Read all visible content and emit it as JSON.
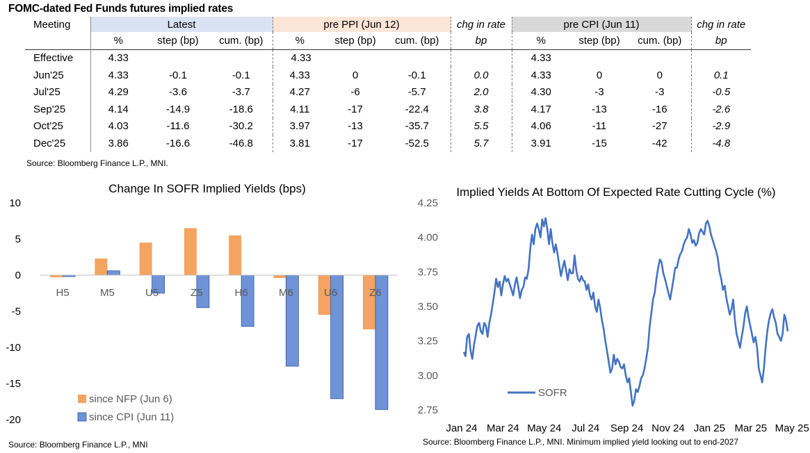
{
  "table": {
    "title": "FOMC-dated Fed Funds futures implied rates",
    "meeting_label": "Meeting",
    "groups": {
      "latest": "Latest",
      "ppi": "pre PPI (Jun 12)",
      "chg1": "chg in rate",
      "cpi": "pre CPI (Jun 11)",
      "chg2": "chg in rate"
    },
    "subheaders": {
      "pct": "%",
      "step": "step (bp)",
      "cum": "cum. (bp)",
      "bp": "bp"
    },
    "effective": {
      "label": "Effective",
      "latest": "4.33",
      "ppi": "4.33",
      "cpi": "4.33"
    },
    "rows": [
      {
        "meeting": "Jun'25",
        "l_pct": "4.33",
        "l_step": "-0.1",
        "l_cum": "-0.1",
        "p_pct": "4.33",
        "p_step": "0",
        "p_cum": "-0.1",
        "chg1": "0.0",
        "c_pct": "4.33",
        "c_step": "0",
        "c_cum": "0",
        "chg2": "0.1"
      },
      {
        "meeting": "Jul'25",
        "l_pct": "4.29",
        "l_step": "-3.6",
        "l_cum": "-3.7",
        "p_pct": "4.27",
        "p_step": "-6",
        "p_cum": "-5.7",
        "chg1": "2.0",
        "c_pct": "4.30",
        "c_step": "-3",
        "c_cum": "-3",
        "chg2": "-0.5"
      },
      {
        "meeting": "Sep'25",
        "l_pct": "4.14",
        "l_step": "-14.9",
        "l_cum": "-18.6",
        "p_pct": "4.11",
        "p_step": "-17",
        "p_cum": "-22.4",
        "chg1": "3.8",
        "c_pct": "4.17",
        "c_step": "-13",
        "c_cum": "-16",
        "chg2": "-2.6"
      },
      {
        "meeting": "Oct'25",
        "l_pct": "4.03",
        "l_step": "-11.6",
        "l_cum": "-30.2",
        "p_pct": "3.97",
        "p_step": "-13",
        "p_cum": "-35.7",
        "chg1": "5.5",
        "c_pct": "4.06",
        "c_step": "-11",
        "c_cum": "-27",
        "chg2": "-2.9"
      },
      {
        "meeting": "Dec'25",
        "l_pct": "3.86",
        "l_step": "-16.6",
        "l_cum": "-46.8",
        "p_pct": "3.81",
        "p_step": "-17",
        "p_cum": "-52.5",
        "chg1": "5.7",
        "c_pct": "3.91",
        "c_step": "-15",
        "c_cum": "-42",
        "chg2": "-4.8"
      }
    ],
    "source": "Source: Bloomberg Finance L.P., MNI."
  },
  "colors": {
    "orange": "#f4a460",
    "blue": "#6f93d6",
    "blue_edge": "#2f55a4",
    "line": "#4472c4"
  },
  "chart_data": [
    {
      "type": "bar",
      "title": "Change In SOFR Implied Yields (bps)",
      "categories": [
        "H5",
        "M5",
        "U5",
        "Z5",
        "H6",
        "M6",
        "U6",
        "Z6"
      ],
      "series": [
        {
          "name": "since NFP (Jun 6)",
          "values": [
            -0.3,
            2.3,
            4.5,
            6.5,
            5.5,
            -0.4,
            -5.5,
            -7.5
          ]
        },
        {
          "name": "since CPI (Jun 11)",
          "values": [
            -0.2,
            0.6,
            -2.5,
            -4.5,
            -7.1,
            -12.6,
            -17.1,
            -18.6
          ]
        }
      ],
      "yticks": [
        "10",
        "5",
        "0",
        "-5",
        "-10",
        "-15",
        "-20"
      ],
      "ylim": [
        -20,
        10
      ],
      "legend": "bottom-left",
      "source": "Source: Bloomberg Finance L.P., MNI"
    },
    {
      "type": "line",
      "title": "Implied Yields At Bottom Of Expected Rate Cutting Cycle (%)",
      "series": [
        {
          "name": "SOFR",
          "x_start": "2024-01-02",
          "x_end": "2025-06-13",
          "values": [
            3.17,
            3.14,
            3.28,
            3.3,
            3.18,
            3.12,
            3.22,
            3.29,
            3.36,
            3.38,
            3.32,
            3.3,
            3.38,
            3.36,
            3.28,
            3.38,
            3.44,
            3.52,
            3.6,
            3.7,
            3.64,
            3.68,
            3.58,
            3.66,
            3.72,
            3.68,
            3.7,
            3.66,
            3.62,
            3.58,
            3.66,
            3.71,
            3.64,
            3.56,
            3.62,
            3.64,
            3.71,
            3.7,
            3.77,
            3.92,
            4.02,
            3.95,
            4.06,
            4.1,
            4.06,
            4.0,
            4.13,
            4.08,
            4.14,
            4.06,
            3.95,
            4.06,
            3.96,
            3.89,
            3.95,
            3.88,
            3.8,
            3.72,
            3.78,
            3.83,
            3.76,
            3.69,
            3.77,
            3.74,
            3.74,
            3.87,
            3.76,
            3.7,
            3.68,
            3.72,
            3.69,
            3.68,
            3.62,
            3.66,
            3.58,
            3.55,
            3.6,
            3.5,
            3.46,
            3.55,
            3.49,
            3.4,
            3.34,
            3.25,
            3.18,
            3.1,
            3.02,
            3.05,
            3.15,
            3.08,
            3.12,
            3.1,
            3.06,
            3.05,
            3.08,
            3.0,
            2.95,
            2.98,
            2.88,
            2.78,
            2.82,
            2.9,
            2.88,
            2.92,
            2.98,
            3.0,
            3.05,
            3.12,
            3.2,
            3.35,
            3.45,
            3.55,
            3.6,
            3.7,
            3.78,
            3.84,
            3.82,
            3.74,
            3.7,
            3.65,
            3.6,
            3.55,
            3.62,
            3.7,
            3.78,
            3.78,
            3.84,
            3.88,
            3.9,
            3.95,
            3.98,
            4.0,
            4.06,
            4.02,
            3.96,
            3.98,
            3.94,
            3.96,
            4.03,
            4.06,
            4.04,
            4.02,
            4.1,
            4.12,
            4.08,
            4.02,
            3.98,
            3.94,
            3.9,
            3.85,
            3.75,
            3.7,
            3.62,
            3.65,
            3.56,
            3.5,
            3.44,
            3.48,
            3.55,
            3.4,
            3.3,
            3.25,
            3.2,
            3.28,
            3.35,
            3.45,
            3.5,
            3.42,
            3.36,
            3.3,
            3.24,
            3.28,
            3.2,
            3.05,
            3.0,
            2.95,
            3.05,
            3.2,
            3.32,
            3.4,
            3.45,
            3.48,
            3.42,
            3.38,
            3.3,
            3.28,
            3.25,
            3.3,
            3.44,
            3.4,
            3.32
          ]
        }
      ],
      "xticks": [
        "Jan 24",
        "Mar 24",
        "May 24",
        "Jul 24",
        "Sep 24",
        "Nov 24",
        "Jan 25",
        "Mar 25",
        "May 25"
      ],
      "yticks": [
        "4.25",
        "4.00",
        "3.75",
        "3.50",
        "3.25",
        "3.00",
        "2.75"
      ],
      "ylim": [
        2.75,
        4.25
      ],
      "legend": "bottom-left",
      "source": "Source: Bloomberg Finance L.P., MNI. Minimum implied yield looking out to end-2027"
    }
  ]
}
